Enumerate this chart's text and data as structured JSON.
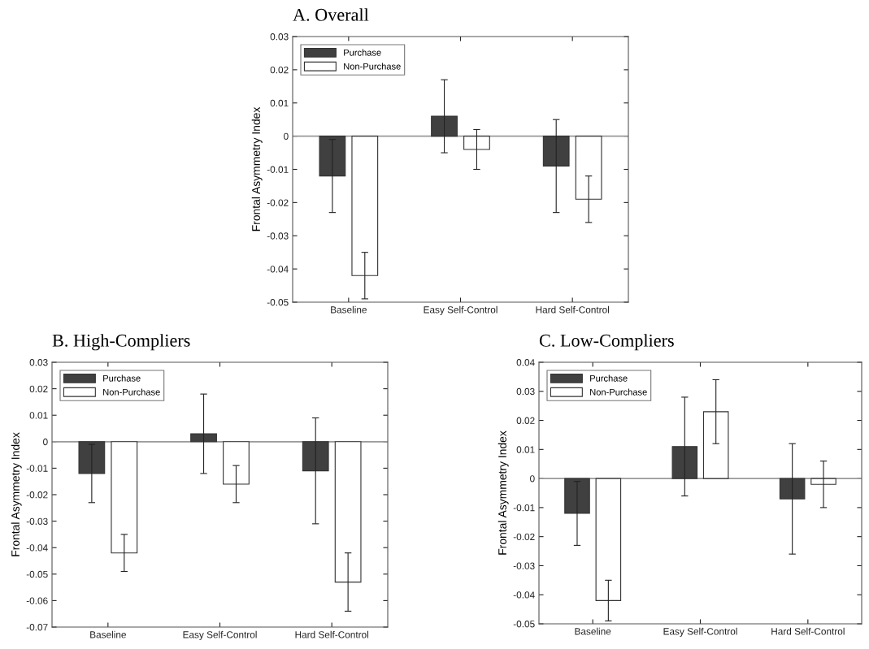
{
  "chart_data": [
    {
      "type": "bar",
      "title": "A. Overall",
      "ylabel": "Frontal Asymmetry Index",
      "categories": [
        "Baseline",
        "Easy Self-Control",
        "Hard Self-Control"
      ],
      "series": [
        {
          "name": "Purchase",
          "color": "#404040",
          "values": [
            -0.012,
            0.006,
            -0.009
          ],
          "errors": [
            0.011,
            0.011,
            0.014
          ]
        },
        {
          "name": "Non-Purchase",
          "color": "#ffffff",
          "values": [
            -0.042,
            -0.004,
            -0.019
          ],
          "errors": [
            0.007,
            0.006,
            0.007
          ]
        }
      ],
      "ylim": [
        -0.05,
        0.03
      ],
      "yticks": [
        -0.05,
        -0.04,
        -0.03,
        -0.02,
        -0.01,
        0,
        0.01,
        0.02,
        0.03
      ],
      "ref_lines": [
        {
          "axis": "y",
          "value": 0,
          "color": "#999999"
        }
      ],
      "legend": "top left",
      "grid": false
    },
    {
      "type": "bar",
      "title": "B. High-Compliers",
      "ylabel": "Frontal Asymmetry Index",
      "categories": [
        "Baseline",
        "Easy Self-Control",
        "Hard Self-Control"
      ],
      "series": [
        {
          "name": "Purchase",
          "color": "#404040",
          "values": [
            -0.012,
            0.003,
            -0.011
          ],
          "errors": [
            0.011,
            0.015,
            0.02
          ]
        },
        {
          "name": "Non-Purchase",
          "color": "#ffffff",
          "values": [
            -0.042,
            -0.016,
            -0.053
          ],
          "errors": [
            0.007,
            0.007,
            0.011
          ]
        }
      ],
      "ylim": [
        -0.07,
        0.03
      ],
      "yticks": [
        -0.07,
        -0.06,
        -0.05,
        -0.04,
        -0.03,
        -0.02,
        -0.01,
        0,
        0.01,
        0.02,
        0.03
      ],
      "ref_lines": [
        {
          "axis": "y",
          "value": 0,
          "color": "#999999"
        }
      ],
      "legend": "top left",
      "grid": false
    },
    {
      "type": "bar",
      "title": "C. Low-Compliers",
      "ylabel": "Frontal Asymmetry Index",
      "categories": [
        "Baseline",
        "Easy Self-Control",
        "Hard Self-Control"
      ],
      "series": [
        {
          "name": "Purchase",
          "color": "#404040",
          "values": [
            -0.012,
            0.011,
            -0.007
          ],
          "errors": [
            0.011,
            0.017,
            0.019
          ]
        },
        {
          "name": "Non-Purchase",
          "color": "#ffffff",
          "values": [
            -0.042,
            0.023,
            -0.002
          ],
          "errors": [
            0.007,
            0.011,
            0.008
          ]
        }
      ],
      "ylim": [
        -0.05,
        0.04
      ],
      "yticks": [
        -0.05,
        -0.04,
        -0.03,
        -0.02,
        -0.01,
        0,
        0.01,
        0.02,
        0.03,
        0.04
      ],
      "ref_lines": [
        {
          "axis": "y",
          "value": 0,
          "color": "#999999"
        }
      ],
      "legend": "top left",
      "grid": false
    }
  ]
}
